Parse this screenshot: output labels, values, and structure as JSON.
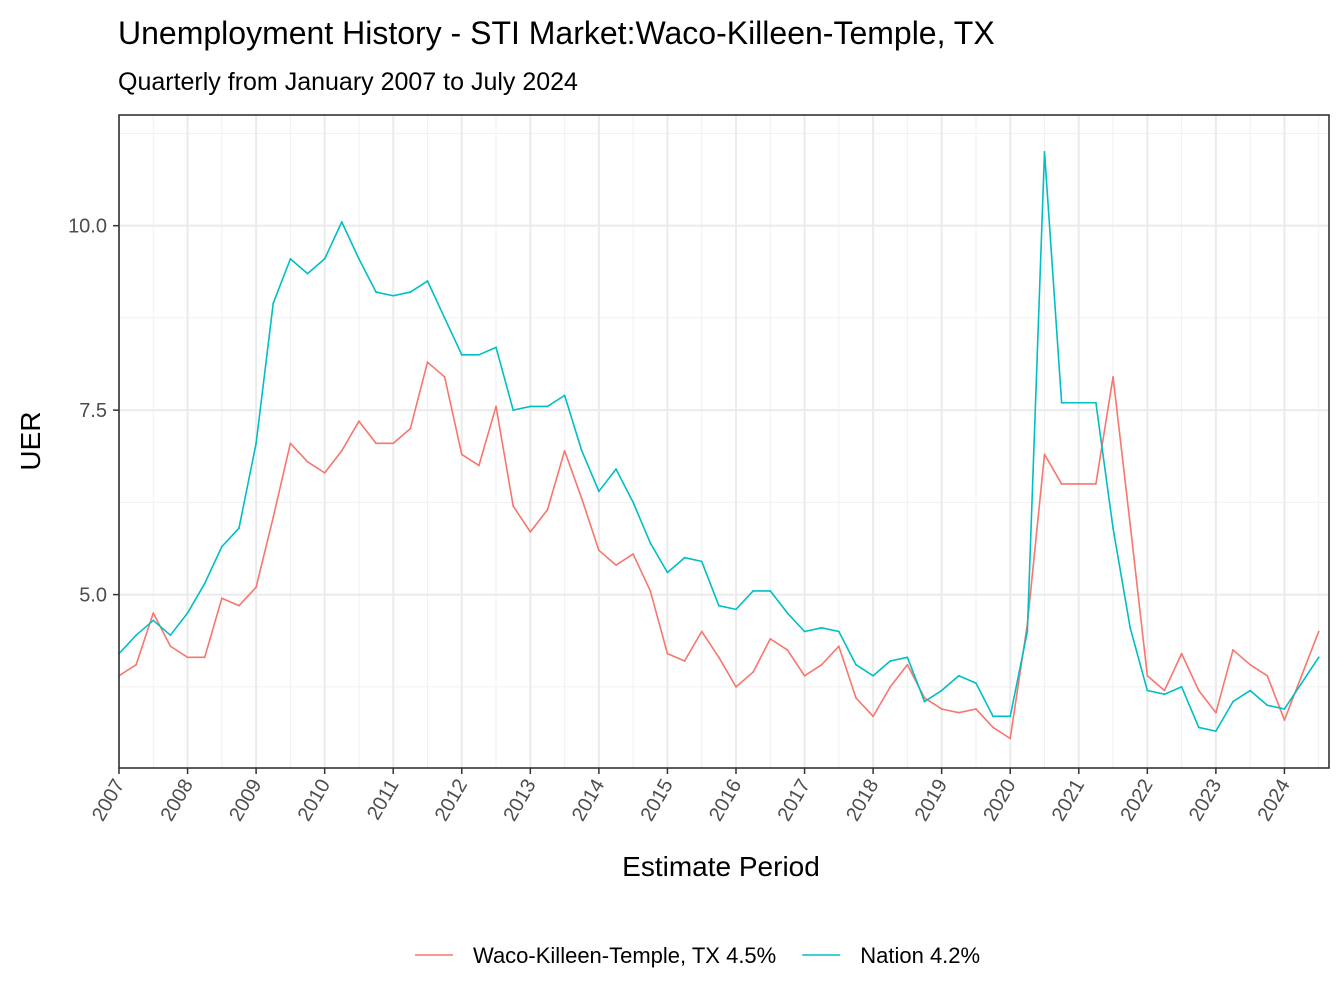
{
  "chart_data": {
    "type": "line",
    "title": "Unemployment History - STI Market:Waco-Killeen-Temple, TX",
    "subtitle": "Quarterly from January 2007 to July 2024",
    "xlabel": "Estimate Period",
    "ylabel": "UER",
    "x_start": 2007.0,
    "x_step": 0.25,
    "xlim": [
      2007.0,
      2024.65
    ],
    "ylim": [
      2.65,
      11.5
    ],
    "x_ticks": [
      2007,
      2008,
      2009,
      2010,
      2011,
      2012,
      2013,
      2014,
      2015,
      2016,
      2017,
      2018,
      2019,
      2020,
      2021,
      2022,
      2023,
      2024
    ],
    "x_tick_labels": [
      "2007",
      "2008",
      "2009",
      "2010",
      "2011",
      "2012",
      "2013",
      "2014",
      "2015",
      "2016",
      "2017",
      "2018",
      "2019",
      "2020",
      "2021",
      "2022",
      "2023",
      "2024"
    ],
    "y_ticks": [
      5.0,
      7.5,
      10.0
    ],
    "y_tick_labels": [
      "5.0",
      "7.5",
      "10.0"
    ],
    "y_minor_ticks": [
      3.75,
      6.25,
      8.75,
      11.25
    ],
    "grid": true,
    "legend_position": "bottom",
    "series": [
      {
        "name": "Waco-Killeen-Temple, TX 4.5%",
        "color": "#F8766D",
        "values": [
          3.9,
          4.05,
          4.75,
          4.3,
          4.15,
          4.15,
          4.95,
          4.85,
          5.1,
          6.05,
          7.05,
          6.8,
          6.65,
          6.95,
          7.35,
          7.05,
          7.05,
          7.25,
          8.15,
          7.95,
          6.9,
          6.75,
          7.55,
          6.2,
          5.85,
          6.15,
          6.95,
          6.3,
          5.6,
          5.4,
          5.55,
          5.05,
          4.2,
          4.1,
          4.5,
          4.15,
          3.75,
          3.95,
          4.4,
          4.25,
          3.9,
          4.05,
          4.3,
          3.6,
          3.35,
          3.75,
          4.05,
          3.6,
          3.45,
          3.4,
          3.45,
          3.2,
          3.05,
          4.6,
          6.9,
          6.5,
          6.5,
          6.5,
          7.95,
          5.95,
          3.9,
          3.7,
          4.2,
          3.7,
          3.4,
          4.25,
          4.05,
          3.9,
          3.3,
          3.9,
          4.5
        ]
      },
      {
        "name": "Nation 4.2%",
        "color": "#00BFC4",
        "values": [
          4.2,
          4.45,
          4.65,
          4.45,
          4.75,
          5.15,
          5.65,
          5.9,
          7.05,
          8.95,
          9.55,
          9.35,
          9.55,
          10.05,
          9.55,
          9.1,
          9.05,
          9.1,
          9.25,
          8.75,
          8.25,
          8.25,
          8.35,
          7.5,
          7.55,
          7.55,
          7.7,
          6.95,
          6.4,
          6.7,
          6.25,
          5.7,
          5.3,
          5.5,
          5.45,
          4.85,
          4.8,
          5.05,
          5.05,
          4.75,
          4.5,
          4.55,
          4.5,
          4.05,
          3.9,
          4.1,
          4.15,
          3.55,
          3.7,
          3.9,
          3.8,
          3.35,
          3.35,
          4.5,
          11.0,
          7.6,
          7.6,
          7.6,
          5.9,
          4.55,
          3.7,
          3.65,
          3.75,
          3.2,
          3.15,
          3.55,
          3.7,
          3.5,
          3.45,
          3.8,
          4.15
        ]
      }
    ]
  }
}
